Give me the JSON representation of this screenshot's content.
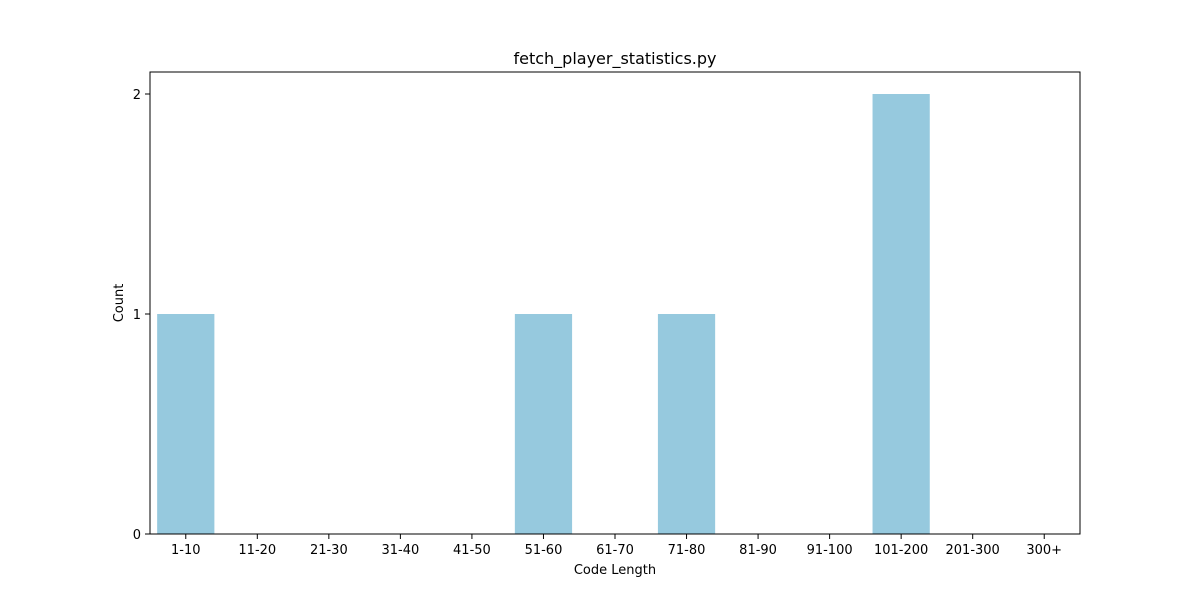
{
  "chart_data": {
    "type": "bar",
    "title": "fetch_player_statistics.py",
    "xlabel": "Code Length",
    "ylabel": "Count",
    "categories": [
      "1-10",
      "11-20",
      "21-30",
      "31-40",
      "41-50",
      "51-60",
      "61-70",
      "71-80",
      "81-90",
      "91-100",
      "101-200",
      "201-300",
      "300+"
    ],
    "values": [
      1,
      0,
      0,
      0,
      0,
      1,
      0,
      1,
      0,
      0,
      2,
      0,
      0
    ],
    "ylim": [
      0,
      2.1
    ],
    "yticks": [
      0,
      1,
      2
    ],
    "bar_color": "#96c9de",
    "grid": false,
    "legend": false
  }
}
